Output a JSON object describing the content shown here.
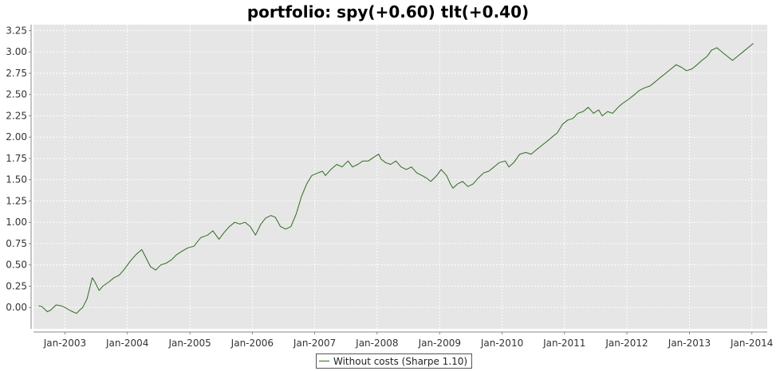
{
  "chart_data": {
    "type": "line",
    "title": "portfolio: spy(+0.60) tlt(+0.40)",
    "xlabel": "",
    "ylabel": "",
    "ylim": [
      -0.25,
      3.32
    ],
    "yticks": [
      0.0,
      0.25,
      0.5,
      0.75,
      1.0,
      1.25,
      1.5,
      1.75,
      2.0,
      2.25,
      2.5,
      2.75,
      3.0,
      3.25
    ],
    "ytick_labels": [
      "0.00",
      "0.25",
      "0.50",
      "0.75",
      "1.00",
      "1.25",
      "1.50",
      "1.75",
      "2.00",
      "2.25",
      "2.50",
      "2.75",
      "3.00",
      "3.25"
    ],
    "xlim": [
      "2002-07-01",
      "2014-04-01"
    ],
    "xticks": [
      "2003-01-01",
      "2004-01-01",
      "2005-01-01",
      "2006-01-01",
      "2007-01-01",
      "2008-01-01",
      "2009-01-01",
      "2010-01-01",
      "2011-01-01",
      "2012-01-01",
      "2013-01-01",
      "2014-01-01"
    ],
    "xtick_labels": [
      "Jan-2003",
      "Jan-2004",
      "Jan-2005",
      "Jan-2006",
      "Jan-2007",
      "Jan-2008",
      "Jan-2009",
      "Jan-2010",
      "Jan-2011",
      "Jan-2012",
      "Jan-2013",
      "Jan-2014"
    ],
    "grid": true,
    "legend_position": "bottom-center",
    "colors": {
      "series": "#2e6b1f",
      "plot_background": "#e6e6e6",
      "gridline": "#ffffff"
    },
    "series": [
      {
        "name": "Without costs (Sharpe 1.10)",
        "x": [
          "2002-08-01",
          "2002-08-20",
          "2002-09-20",
          "2002-10-10",
          "2002-11-10",
          "2002-12-10",
          "2003-01-01",
          "2003-02-05",
          "2003-03-10",
          "2003-03-28",
          "2003-04-15",
          "2003-05-10",
          "2003-05-25",
          "2003-06-10",
          "2003-06-25",
          "2003-07-20",
          "2003-08-10",
          "2003-09-15",
          "2003-10-15",
          "2003-11-15",
          "2003-12-15",
          "2004-01-20",
          "2004-02-20",
          "2004-03-25",
          "2004-04-15",
          "2004-05-15",
          "2004-06-15",
          "2004-07-15",
          "2004-08-15",
          "2004-09-15",
          "2004-10-15",
          "2004-11-15",
          "2004-12-20",
          "2005-01-25",
          "2005-03-05",
          "2005-04-15",
          "2005-05-15",
          "2005-06-20",
          "2005-07-20",
          "2005-08-20",
          "2005-09-20",
          "2005-10-20",
          "2005-11-20",
          "2005-12-20",
          "2006-01-20",
          "2006-02-20",
          "2006-03-20",
          "2006-04-20",
          "2006-05-15",
          "2006-06-15",
          "2006-07-15",
          "2006-08-15",
          "2006-09-15",
          "2006-10-15",
          "2006-11-15",
          "2006-12-15",
          "2007-01-20",
          "2007-02-15",
          "2007-03-05",
          "2007-04-05",
          "2007-05-10",
          "2007-06-10",
          "2007-07-15",
          "2007-08-10",
          "2007-09-10",
          "2007-10-10",
          "2007-11-10",
          "2007-12-10",
          "2008-01-10",
          "2008-01-25",
          "2008-02-20",
          "2008-03-20",
          "2008-04-20",
          "2008-05-20",
          "2008-06-20",
          "2008-07-20",
          "2008-08-20",
          "2008-09-20",
          "2008-10-15",
          "2008-11-10",
          "2008-12-15",
          "2009-01-10",
          "2009-02-10",
          "2009-03-05",
          "2009-03-20",
          "2009-04-15",
          "2009-05-15",
          "2009-06-15",
          "2009-07-15",
          "2009-08-15",
          "2009-09-15",
          "2009-10-15",
          "2009-11-15",
          "2009-12-15",
          "2010-01-20",
          "2010-02-10",
          "2010-03-10",
          "2010-04-15",
          "2010-05-20",
          "2010-06-20",
          "2010-07-20",
          "2010-08-20",
          "2010-09-20",
          "2010-10-20",
          "2010-11-20",
          "2010-12-20",
          "2011-01-20",
          "2011-02-20",
          "2011-03-20",
          "2011-04-20",
          "2011-05-20",
          "2011-06-20",
          "2011-07-20",
          "2011-08-10",
          "2011-09-10",
          "2011-10-10",
          "2011-11-10",
          "2011-12-10",
          "2012-01-15",
          "2012-02-15",
          "2012-03-15",
          "2012-04-15",
          "2012-05-15",
          "2012-06-15",
          "2012-07-15",
          "2012-08-15",
          "2012-09-15",
          "2012-10-15",
          "2012-11-15",
          "2012-12-15",
          "2013-01-15",
          "2013-02-15",
          "2013-03-15",
          "2013-04-15",
          "2013-05-10",
          "2013-06-10",
          "2013-07-10",
          "2013-08-10",
          "2013-09-10",
          "2013-10-10",
          "2013-11-10",
          "2013-12-10",
          "2014-01-10"
        ],
        "y": [
          0.02,
          0.01,
          -0.05,
          -0.03,
          0.03,
          0.02,
          0.0,
          -0.04,
          -0.07,
          -0.03,
          0.0,
          0.1,
          0.22,
          0.35,
          0.3,
          0.2,
          0.25,
          0.3,
          0.35,
          0.38,
          0.45,
          0.55,
          0.62,
          0.68,
          0.6,
          0.48,
          0.44,
          0.5,
          0.52,
          0.56,
          0.62,
          0.66,
          0.7,
          0.72,
          0.82,
          0.85,
          0.9,
          0.8,
          0.88,
          0.95,
          1.0,
          0.98,
          1.0,
          0.95,
          0.85,
          0.98,
          1.05,
          1.08,
          1.06,
          0.95,
          0.92,
          0.95,
          1.1,
          1.3,
          1.45,
          1.55,
          1.58,
          1.6,
          1.55,
          1.62,
          1.68,
          1.65,
          1.72,
          1.65,
          1.68,
          1.72,
          1.72,
          1.76,
          1.8,
          1.74,
          1.7,
          1.68,
          1.72,
          1.65,
          1.62,
          1.65,
          1.58,
          1.55,
          1.52,
          1.48,
          1.55,
          1.62,
          1.55,
          1.45,
          1.4,
          1.45,
          1.48,
          1.42,
          1.45,
          1.52,
          1.58,
          1.6,
          1.65,
          1.7,
          1.72,
          1.65,
          1.7,
          1.8,
          1.82,
          1.8,
          1.85,
          1.9,
          1.95,
          2.0,
          2.05,
          2.15,
          2.2,
          2.22,
          2.28,
          2.3,
          2.35,
          2.28,
          2.32,
          2.25,
          2.3,
          2.28,
          2.35,
          2.4,
          2.45,
          2.5,
          2.55,
          2.58,
          2.6,
          2.65,
          2.7,
          2.75,
          2.8,
          2.85,
          2.82,
          2.78,
          2.8,
          2.85,
          2.9,
          2.95,
          3.02,
          3.05,
          3.0,
          2.95,
          2.9,
          2.95,
          3.0,
          3.05,
          3.1
        ]
      }
    ]
  }
}
